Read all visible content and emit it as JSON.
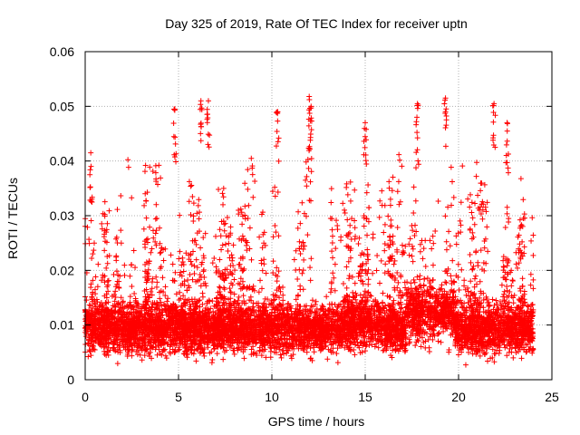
{
  "chart_data": {
    "type": "scatter",
    "title": "Day 325 of 2019, Rate Of TEC Index for receiver uptn",
    "xlabel": "GPS time / hours",
    "ylabel": "ROTI / TECUs",
    "xlim": [
      0,
      25
    ],
    "ylim": [
      0,
      0.06
    ],
    "x_ticks": [
      0,
      5,
      10,
      15,
      20,
      25
    ],
    "x_tick_labels": [
      "0",
      "5",
      "10",
      "15",
      "20",
      "25"
    ],
    "y_ticks": [
      0,
      0.01,
      0.02,
      0.03,
      0.04,
      0.05,
      0.06
    ],
    "y_tick_labels": [
      "0",
      "0.01",
      "0.02",
      "0.03",
      "0.04",
      "0.05",
      "0.06"
    ],
    "grid": true,
    "marker": "+",
    "series": [
      {
        "name": "ROTI",
        "color": "#ff0000",
        "x_range": [
          0,
          24
        ],
        "baseline_range": [
          0.005,
          0.015
        ],
        "notable_peaks": [
          {
            "x": 6.2,
            "y": 0.051
          },
          {
            "x": 6.6,
            "y": 0.051
          },
          {
            "x": 4.8,
            "y": 0.0495
          },
          {
            "x": 10.3,
            "y": 0.049
          },
          {
            "x": 12.0,
            "y": 0.0518
          },
          {
            "x": 12.1,
            "y": 0.05
          },
          {
            "x": 17.8,
            "y": 0.0505
          },
          {
            "x": 19.3,
            "y": 0.0515
          },
          {
            "x": 21.9,
            "y": 0.0505
          },
          {
            "x": 22.6,
            "y": 0.047
          },
          {
            "x": 15.0,
            "y": 0.047
          },
          {
            "x": 0.3,
            "y": 0.0415
          }
        ]
      }
    ]
  }
}
